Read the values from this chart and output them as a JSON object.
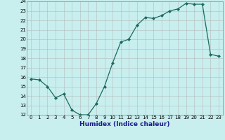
{
  "x": [
    0,
    1,
    2,
    3,
    4,
    5,
    6,
    7,
    8,
    9,
    10,
    11,
    12,
    13,
    14,
    15,
    16,
    17,
    18,
    19,
    20,
    21,
    22,
    23
  ],
  "y": [
    15.8,
    15.7,
    15.0,
    13.8,
    14.2,
    12.5,
    12.0,
    12.0,
    13.2,
    15.0,
    17.5,
    19.7,
    20.0,
    21.5,
    22.3,
    22.2,
    22.5,
    23.0,
    23.2,
    23.8,
    23.7,
    23.7,
    18.4,
    18.2
  ],
  "line_color": "#1a6b5e",
  "marker_color": "#1a6b5e",
  "bg_color": "#c8eeee",
  "grid_major_color": "#b0b0b0",
  "grid_minor_color": "#d0d0d0",
  "xlabel": "Humidex (Indice chaleur)",
  "ylim": [
    12,
    24
  ],
  "xlim": [
    -0.5,
    23.5
  ],
  "yticks": [
    12,
    13,
    14,
    15,
    16,
    17,
    18,
    19,
    20,
    21,
    22,
    23,
    24
  ],
  "xticks": [
    0,
    1,
    2,
    3,
    4,
    5,
    6,
    7,
    8,
    9,
    10,
    11,
    12,
    13,
    14,
    15,
    16,
    17,
    18,
    19,
    20,
    21,
    22,
    23
  ],
  "tick_fontsize": 5.0,
  "xlabel_fontsize": 6.5,
  "marker_size": 2.0,
  "line_width": 0.9
}
